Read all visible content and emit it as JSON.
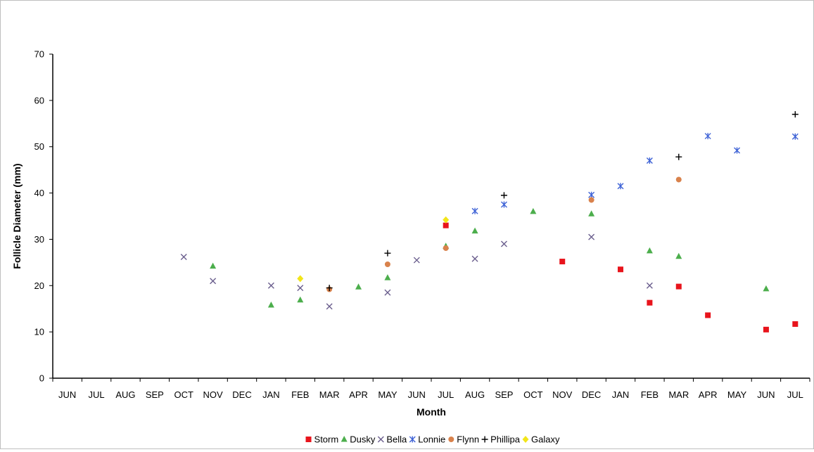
{
  "chart_data": {
    "type": "scatter",
    "title": "",
    "xlabel": "Month",
    "ylabel": "Follicle Diameter (mm)",
    "ylim": [
      0,
      70
    ],
    "yticks": [
      "0",
      "10",
      "20",
      "30",
      "40",
      "50",
      "60",
      "70"
    ],
    "categories": [
      "JUN",
      "JUL",
      "AUG",
      "SEP",
      "OCT",
      "NOV",
      "DEC",
      "JAN",
      "FEB",
      "MAR",
      "APR",
      "MAY",
      "JUN",
      "JUL",
      "AUG",
      "SEP",
      "OCT",
      "NOV",
      "DEC",
      "JAN",
      "FEB",
      "MAR",
      "APR",
      "MAY",
      "JUN",
      "JUL"
    ],
    "grid": false,
    "legend_position": "bottom",
    "series": [
      {
        "name": "Storm",
        "marker": "square",
        "color": "#e8141c",
        "points": [
          [
            13,
            33
          ],
          [
            17,
            25.2
          ],
          [
            19,
            23.5
          ],
          [
            20,
            16.3
          ],
          [
            21,
            19.8
          ],
          [
            22,
            13.6
          ],
          [
            24,
            10.5
          ],
          [
            25,
            11.7
          ]
        ]
      },
      {
        "name": "Dusky",
        "marker": "triangle",
        "color": "#4cae4c",
        "points": [
          [
            5,
            24.2
          ],
          [
            7,
            15.8
          ],
          [
            8,
            16.9
          ],
          [
            10,
            19.7
          ],
          [
            11,
            21.7
          ],
          [
            13,
            28.5
          ],
          [
            14,
            31.8
          ],
          [
            16,
            36
          ],
          [
            18,
            35.5
          ],
          [
            20,
            27.5
          ],
          [
            21,
            26.3
          ],
          [
            24,
            19.3
          ]
        ]
      },
      {
        "name": "Bella",
        "marker": "x",
        "color": "#6b5f8e",
        "points": [
          [
            4,
            26.2
          ],
          [
            5,
            21
          ],
          [
            7,
            20
          ],
          [
            8,
            19.5
          ],
          [
            9,
            15.5
          ],
          [
            11,
            18.5
          ],
          [
            12,
            25.5
          ],
          [
            14,
            25.8
          ],
          [
            15,
            29
          ],
          [
            18,
            30.5
          ],
          [
            20,
            20
          ]
        ]
      },
      {
        "name": "Lonnie",
        "marker": "asterisk",
        "color": "#3f63d6",
        "points": [
          [
            14,
            36.1
          ],
          [
            15,
            37.5
          ],
          [
            18,
            39.6
          ],
          [
            19,
            41.5
          ],
          [
            20,
            47
          ],
          [
            22,
            52.3
          ],
          [
            23,
            49.2
          ],
          [
            25,
            52.2
          ]
        ]
      },
      {
        "name": "Flynn",
        "marker": "circle",
        "color": "#d9824c",
        "points": [
          [
            9,
            19.2
          ],
          [
            11,
            24.6
          ],
          [
            13,
            28.1
          ],
          [
            18,
            38.5
          ],
          [
            21,
            42.9
          ]
        ]
      },
      {
        "name": "Phillipa",
        "marker": "plus",
        "color": "#000000",
        "points": [
          [
            9,
            19.5
          ],
          [
            11,
            27
          ],
          [
            15,
            39.5
          ],
          [
            21,
            47.8
          ],
          [
            25,
            57
          ]
        ]
      },
      {
        "name": "Galaxy",
        "marker": "diamond",
        "color": "#f2e51a",
        "points": [
          [
            8,
            21.5
          ],
          [
            13,
            34.2
          ]
        ]
      }
    ]
  }
}
